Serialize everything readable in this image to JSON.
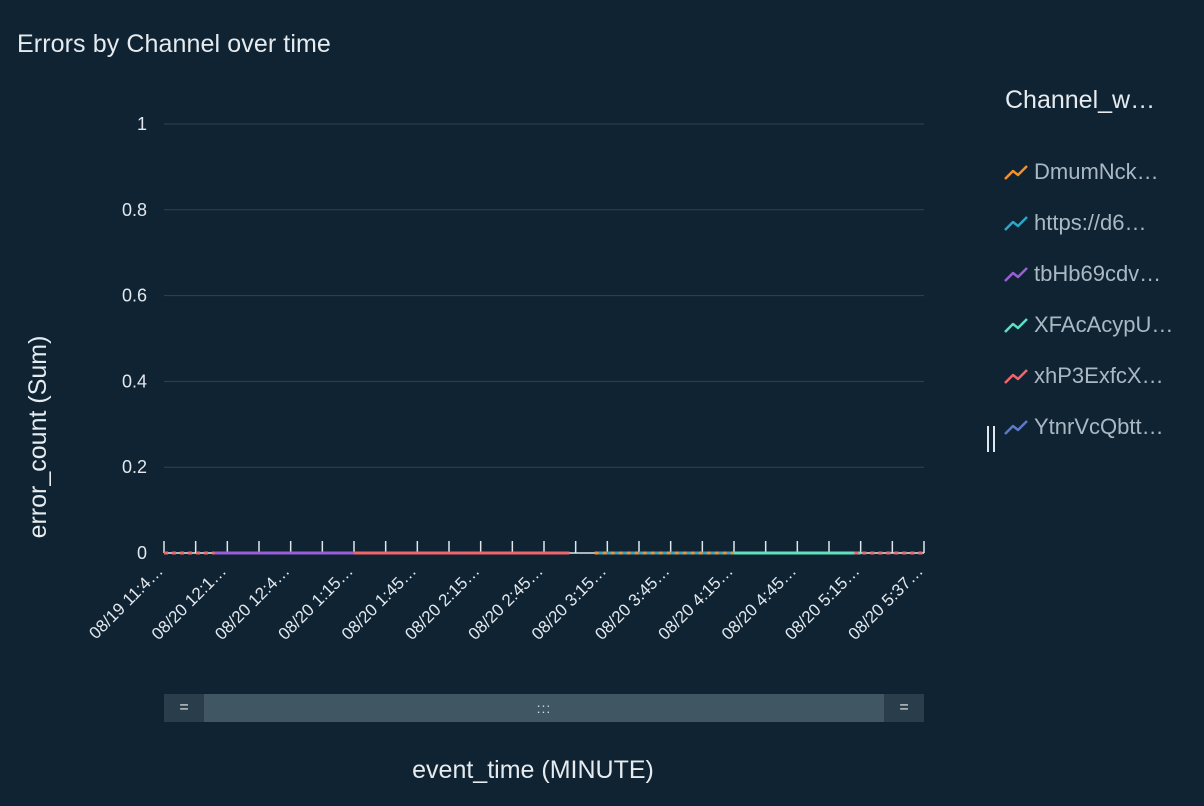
{
  "chart_data": {
    "type": "line",
    "title": "Errors by Channel over time",
    "xlabel": "event_time (MINUTE)",
    "ylabel": "error_count (Sum)",
    "ylim": [
      0,
      1
    ],
    "yticks": [
      "0",
      "0.2",
      "0.4",
      "0.6",
      "0.8",
      "1"
    ],
    "x_tick_labels": [
      "08/19 11:4…",
      "08/20 12:1…",
      "08/20 12:4…",
      "08/20 1:15…",
      "08/20 1:45…",
      "08/20 2:15…",
      "08/20 2:45…",
      "08/20 3:15…",
      "08/20 3:45…",
      "08/20 4:15…",
      "08/20 4:45…",
      "08/20 5:15…",
      "08/20 5:37…"
    ],
    "legend_title": "Channel_w…",
    "grid": true,
    "legend_position": "right",
    "series": [
      {
        "name": "DmumNck…",
        "color": "#f7902a",
        "segments": [
          {
            "from_tick": 6.8,
            "to_tick": 9.0,
            "value": 0,
            "style": "dashed"
          }
        ]
      },
      {
        "name": "https://d6…",
        "color": "#2ea6c9",
        "segments": [
          {
            "from_tick": 6.8,
            "to_tick": 9.0,
            "value": 0,
            "style": "dashed"
          }
        ]
      },
      {
        "name": "tbHb69cdv…",
        "color": "#9a5fd6",
        "segments": [
          {
            "from_tick": 0.8,
            "to_tick": 3.0,
            "value": 0,
            "style": "solid"
          }
        ]
      },
      {
        "name": "XFAcAcypU…",
        "color": "#5fe0bf",
        "segments": [
          {
            "from_tick": 9.0,
            "to_tick": 11.0,
            "value": 0,
            "style": "solid"
          }
        ]
      },
      {
        "name": "xhP3ExfcX…",
        "color": "#f2656b",
        "segments": [
          {
            "from_tick": 0,
            "to_tick": 0.8,
            "value": 0,
            "style": "dashed"
          },
          {
            "from_tick": 3.0,
            "to_tick": 6.4,
            "value": 0,
            "style": "solid"
          },
          {
            "from_tick": 10.9,
            "to_tick": 12,
            "value": 0,
            "style": "dashed"
          }
        ]
      },
      {
        "name": "YtnrVcQbtt…",
        "color": "#5d79c9",
        "segments": []
      }
    ]
  },
  "scrollbar": {
    "left_handle": "=",
    "thumb_grip": ":::",
    "right_handle": "="
  }
}
